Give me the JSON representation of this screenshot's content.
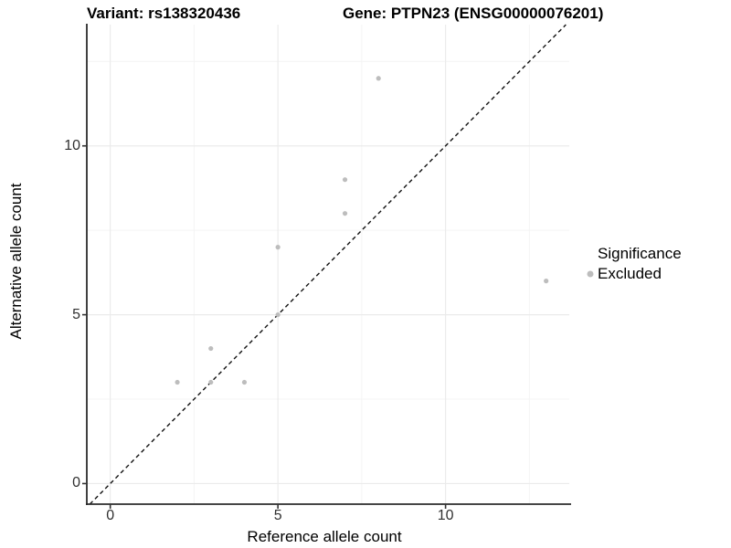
{
  "chart_data": {
    "type": "scatter",
    "title_left": "Variant: rs138320436",
    "title_right": "Gene: PTPN23 (ENSG00000076201)",
    "xlabel": "Reference allele count",
    "ylabel": "Alternative allele count",
    "xlim": [
      -0.7,
      13.69
    ],
    "ylim": [
      -0.61,
      13.59
    ],
    "x_ticks": [
      "0",
      "5",
      "10"
    ],
    "x_tick_values": [
      0,
      5,
      10
    ],
    "y_ticks": [
      "0",
      "5",
      "10"
    ],
    "y_tick_values": [
      0,
      5,
      10
    ],
    "minor_grid_values": [
      2.5,
      7.5,
      12.5
    ],
    "grid": "on",
    "identity_line": {
      "type": "dashed",
      "equation": "y = x"
    },
    "series": [
      {
        "name": "Excluded",
        "color": "#bdbdbd",
        "points": [
          [
            2,
            3
          ],
          [
            3,
            3
          ],
          [
            3,
            4
          ],
          [
            4,
            3
          ],
          [
            5,
            5
          ],
          [
            5,
            7
          ],
          [
            7,
            8
          ],
          [
            7,
            9
          ],
          [
            8,
            12
          ],
          [
            13,
            6
          ]
        ]
      }
    ],
    "legend": {
      "position": "right",
      "title": "Significance",
      "items": [
        {
          "label": "Excluded",
          "color": "#bdbdbd"
        }
      ]
    },
    "colors": {
      "point": "#bdbdbd",
      "grid_major": "#ebebeb",
      "grid_minor": "#f4f4f4",
      "axis_line": "#2b2b2b",
      "tick_mark": "#333333",
      "tick_text": "#303030",
      "identity_line": "#111111"
    }
  }
}
